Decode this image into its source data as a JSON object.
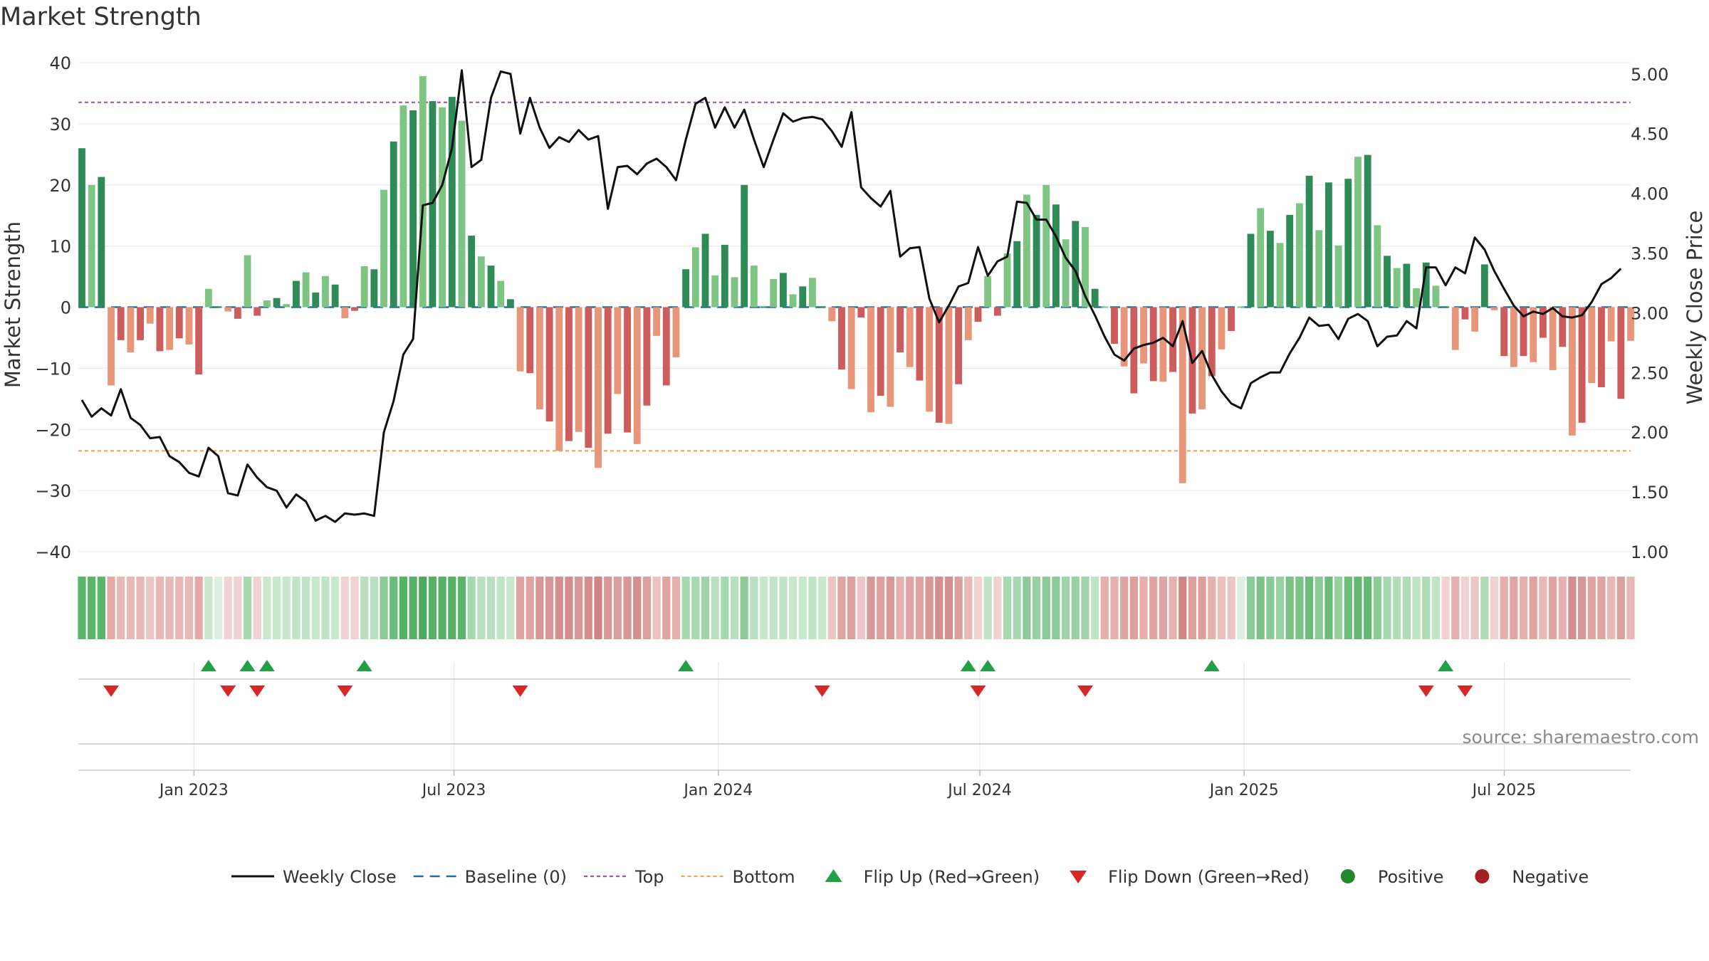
{
  "chart_data": {
    "type": "bar+line",
    "title": "Market Strength",
    "ylabel_left": "Market Strength",
    "ylabel_right": "Weekly Close Price",
    "ylim_left": [
      -40,
      40
    ],
    "ylim_right": [
      1.0,
      5.0
    ],
    "left_ticks": [
      "40",
      "30",
      "20",
      "10",
      "0",
      "−10",
      "−20",
      "−30",
      "−40"
    ],
    "left_tick_values": [
      40,
      30,
      20,
      10,
      0,
      -10,
      -20,
      -30,
      -40
    ],
    "right_ticks": [
      "5.00",
      "4.50",
      "4.00",
      "3.50",
      "3.00",
      "2.50",
      "2.00",
      "1.50",
      "1.00"
    ],
    "right_tick_values": [
      5.0,
      4.5,
      4.0,
      3.5,
      3.0,
      2.5,
      2.0,
      1.5,
      1.0
    ],
    "x_start": "2022-10-15",
    "x_end": "2025-09-27",
    "week_step_days": 7,
    "x_ticks": [
      {
        "label": "Jan 2023",
        "date": "2023-01-01"
      },
      {
        "label": "Jul 2023",
        "date": "2023-07-01"
      },
      {
        "label": "Jan 2024",
        "date": "2024-01-01"
      },
      {
        "label": "Jul 2024",
        "date": "2024-07-01"
      },
      {
        "label": "Jan 2025",
        "date": "2025-01-01"
      },
      {
        "label": "Jul 2025",
        "date": "2025-07-01"
      }
    ],
    "top_level": 33.5,
    "bottom_level": -23.5,
    "strength": [
      26,
      20,
      21.3,
      -12.8,
      -5.4,
      -7.4,
      -5.4,
      -2.7,
      -7.2,
      -7,
      -5.1,
      -6.1,
      -11,
      3,
      0,
      -0.7,
      -1.9,
      8.5,
      -1.4,
      1.1,
      1.5,
      0.5,
      4.3,
      5.7,
      2.4,
      5.1,
      3.7,
      -1.8,
      -0.6,
      6.7,
      6.2,
      19.2,
      27.1,
      33,
      32.2,
      37.8,
      33.7,
      32.7,
      34.4,
      30.5,
      11.7,
      8.3,
      6.8,
      4.3,
      1.3,
      -10.5,
      -10.8,
      -16.7,
      -18.7,
      -23.5,
      -21.9,
      -20.4,
      -23,
      -26.3,
      -20.7,
      -14.2,
      -20.5,
      -22.4,
      -16.1,
      -4.7,
      -12.8,
      -8.2,
      6.2,
      9.8,
      12,
      5.2,
      10.2,
      4.9,
      20,
      6.8,
      0,
      4.6,
      5.6,
      2.1,
      3.4,
      4.8,
      0,
      -2.3,
      -10.2,
      -13.4,
      -1.7,
      -17.2,
      -14.5,
      -16.3,
      -7.4,
      -9.8,
      -12,
      -17.1,
      -18.9,
      -19.1,
      -12.6,
      -5.4,
      -2.4,
      5.1,
      -1.4,
      8.8,
      10.8,
      18.4,
      15.1,
      20,
      16.8,
      11.1,
      14.1,
      13.1,
      3,
      0,
      -6,
      -9.7,
      -14.1,
      -9.2,
      -12.1,
      -12.2,
      -10.6,
      -28.8,
      -17.4,
      -16.7,
      -11.3,
      -6.9,
      -3.9,
      0,
      12,
      16.2,
      12.5,
      10.5,
      15.1,
      17,
      21.5,
      12.6,
      20.4,
      10.1,
      21,
      24.6,
      24.9,
      13.4,
      8.4,
      6.4,
      7.1,
      3.1,
      7.3,
      3.5,
      0,
      -7,
      -2,
      -4,
      7,
      -0.5,
      -8,
      -9.8,
      -8,
      -9,
      -5,
      -10.3,
      -6.5,
      -21,
      -18.9,
      -12.4,
      -13.1,
      -5.6,
      -15,
      -5.5
    ],
    "close": [
      2.27,
      2.13,
      2.2,
      2.14,
      2.36,
      2.12,
      2.06,
      1.95,
      1.96,
      1.8,
      1.75,
      1.66,
      1.63,
      1.87,
      1.8,
      1.49,
      1.47,
      1.73,
      1.62,
      1.54,
      1.51,
      1.37,
      1.48,
      1.42,
      1.26,
      1.3,
      1.25,
      1.32,
      1.31,
      1.32,
      1.3,
      2.0,
      2.26,
      2.65,
      2.78,
      3.9,
      3.92,
      4.07,
      4.38,
      5.03,
      4.22,
      4.28,
      4.8,
      5.02,
      5.0,
      4.5,
      4.8,
      4.55,
      4.38,
      4.47,
      4.43,
      4.53,
      4.45,
      4.48,
      3.87,
      4.22,
      4.23,
      4.16,
      4.25,
      4.29,
      4.22,
      4.11,
      4.45,
      4.75,
      4.8,
      4.55,
      4.72,
      4.55,
      4.7,
      4.45,
      4.22,
      4.45,
      4.67,
      4.6,
      4.63,
      4.64,
      4.62,
      4.52,
      4.39,
      4.68,
      4.05,
      3.96,
      3.89,
      4.02,
      3.47,
      3.54,
      3.55,
      3.12,
      2.92,
      3.06,
      3.22,
      3.25,
      3.55,
      3.31,
      3.43,
      3.47,
      3.93,
      3.92,
      3.78,
      3.78,
      3.64,
      3.46,
      3.35,
      3.14,
      2.98,
      2.8,
      2.65,
      2.6,
      2.7,
      2.73,
      2.75,
      2.79,
      2.72,
      2.93,
      2.58,
      2.68,
      2.48,
      2.34,
      2.24,
      2.2,
      2.41,
      2.46,
      2.5,
      2.5,
      2.66,
      2.79,
      2.96,
      2.89,
      2.9,
      2.78,
      2.95,
      2.99,
      2.93,
      2.72,
      2.8,
      2.81,
      2.93,
      2.87,
      3.38,
      3.38,
      3.23,
      3.38,
      3.33,
      3.63,
      3.53,
      3.35,
      3.2,
      3.06,
      2.97,
      3.01,
      2.99,
      3.04,
      2.97,
      2.96,
      2.98,
      3.09,
      3.24,
      3.29,
      3.37
    ],
    "strip": [
      {
        "i": 0,
        "c": "#5ab46a"
      },
      {
        "i": 1,
        "c": "#5ab46a"
      },
      {
        "i": 2,
        "c": "#5ab46a"
      },
      {
        "i": 3,
        "c": "#e6a8a6"
      },
      {
        "i": 4,
        "c": "#e8b8b6"
      },
      {
        "i": 5,
        "c": "#e8b8b6"
      },
      {
        "i": 6,
        "c": "#e8b8b6"
      },
      {
        "i": 7,
        "c": "#ecc6c4"
      },
      {
        "i": 8,
        "c": "#e8b8b6"
      },
      {
        "i": 9,
        "c": "#e8b8b6"
      },
      {
        "i": 10,
        "c": "#e8b8b6"
      },
      {
        "i": 11,
        "c": "#e8b8b6"
      },
      {
        "i": 12,
        "c": "#e6a8a6"
      },
      {
        "i": 13,
        "c": "#c8e8cc"
      },
      {
        "i": 14,
        "c": "#dcefe0"
      },
      {
        "i": 15,
        "c": "#f0d2d0"
      },
      {
        "i": 16,
        "c": "#f0d2d0"
      },
      {
        "i": 17,
        "c": "#a8d8b0"
      },
      {
        "i": 18,
        "c": "#f0d2d0"
      },
      {
        "i": 19,
        "c": "#c8e8cc"
      },
      {
        "i": 20,
        "c": "#c8e8cc"
      },
      {
        "i": 21,
        "c": "#c8e8cc"
      },
      {
        "i": 22,
        "c": "#c0e4c6"
      },
      {
        "i": 23,
        "c": "#c0e4c6"
      },
      {
        "i": 24,
        "c": "#c8e8cc"
      },
      {
        "i": 25,
        "c": "#c0e4c6"
      },
      {
        "i": 26,
        "c": "#c8e8cc"
      },
      {
        "i": 27,
        "c": "#f0d2d0"
      },
      {
        "i": 28,
        "c": "#f0d2d0"
      },
      {
        "i": 29,
        "c": "#b8e0c0"
      },
      {
        "i": 30,
        "c": "#b8e0c0"
      },
      {
        "i": 31,
        "c": "#8ccb98"
      },
      {
        "i": 32,
        "c": "#6cbd7a"
      },
      {
        "i": 33,
        "c": "#56b066"
      },
      {
        "i": 34,
        "c": "#56b066"
      },
      {
        "i": 35,
        "c": "#4caa5c"
      },
      {
        "i": 36,
        "c": "#56b066"
      },
      {
        "i": 37,
        "c": "#56b066"
      },
      {
        "i": 38,
        "c": "#56b066"
      },
      {
        "i": 39,
        "c": "#5ab46a"
      },
      {
        "i": 40,
        "c": "#a8d8b0"
      },
      {
        "i": 41,
        "c": "#b8e0c0"
      },
      {
        "i": 42,
        "c": "#b8e0c0"
      },
      {
        "i": 43,
        "c": "#c0e4c6"
      },
      {
        "i": 44,
        "c": "#c8e8cc"
      },
      {
        "i": 45,
        "c": "#e0a4a2"
      },
      {
        "i": 46,
        "c": "#e0a4a2"
      },
      {
        "i": 47,
        "c": "#d89896"
      },
      {
        "i": 48,
        "c": "#d89896"
      },
      {
        "i": 49,
        "c": "#d48e8c"
      },
      {
        "i": 50,
        "c": "#d48e8c"
      },
      {
        "i": 51,
        "c": "#d89896"
      },
      {
        "i": 52,
        "c": "#d48e8c"
      },
      {
        "i": 53,
        "c": "#d08684"
      },
      {
        "i": 54,
        "c": "#d89896"
      },
      {
        "i": 55,
        "c": "#dc9e9c"
      },
      {
        "i": 56,
        "c": "#d89896"
      },
      {
        "i": 57,
        "c": "#d48e8c"
      },
      {
        "i": 58,
        "c": "#dca09e"
      },
      {
        "i": 59,
        "c": "#ecc0be"
      },
      {
        "i": 60,
        "c": "#e0a4a2"
      },
      {
        "i": 61,
        "c": "#e6b0ae"
      },
      {
        "i": 62,
        "c": "#a8d8b0"
      },
      {
        "i": 63,
        "c": "#a8d8b0"
      },
      {
        "i": 64,
        "c": "#a0d4a8"
      },
      {
        "i": 65,
        "c": "#b8e0c0"
      },
      {
        "i": 66,
        "c": "#a8d8b0"
      },
      {
        "i": 67,
        "c": "#b8e0c0"
      },
      {
        "i": 68,
        "c": "#8ccb98"
      },
      {
        "i": 69,
        "c": "#b8e0c0"
      },
      {
        "i": 70,
        "c": "#c8e8cc"
      },
      {
        "i": 71,
        "c": "#c0e4c6"
      },
      {
        "i": 72,
        "c": "#c0e4c6"
      },
      {
        "i": 73,
        "c": "#c8e8cc"
      },
      {
        "i": 74,
        "c": "#c8e8cc"
      },
      {
        "i": 75,
        "c": "#c0e4c6"
      },
      {
        "i": 76,
        "c": "#c8e8cc"
      },
      {
        "i": 77,
        "c": "#ecc6c4"
      },
      {
        "i": 78,
        "c": "#e0a4a2"
      },
      {
        "i": 79,
        "c": "#dca09e"
      },
      {
        "i": 80,
        "c": "#ecc6c4"
      },
      {
        "i": 81,
        "c": "#d89896"
      },
      {
        "i": 82,
        "c": "#dca09e"
      },
      {
        "i": 83,
        "c": "#d89896"
      },
      {
        "i": 84,
        "c": "#e6b0ae"
      },
      {
        "i": 85,
        "c": "#e0a4a2"
      },
      {
        "i": 86,
        "c": "#e0a4a2"
      },
      {
        "i": 87,
        "c": "#d89896"
      },
      {
        "i": 88,
        "c": "#d48e8c"
      },
      {
        "i": 89,
        "c": "#d48e8c"
      },
      {
        "i": 90,
        "c": "#dca09e"
      },
      {
        "i": 91,
        "c": "#e8b8b6"
      },
      {
        "i": 92,
        "c": "#f0d2d0"
      },
      {
        "i": 93,
        "c": "#c0e4c6"
      },
      {
        "i": 94,
        "c": "#f0d2d0"
      },
      {
        "i": 95,
        "c": "#a8d8b0"
      },
      {
        "i": 96,
        "c": "#a8d8b0"
      },
      {
        "i": 97,
        "c": "#8ccb98"
      },
      {
        "i": 98,
        "c": "#98d0a2"
      },
      {
        "i": 99,
        "c": "#8ccb98"
      },
      {
        "i": 100,
        "c": "#8ccb98"
      },
      {
        "i": 101,
        "c": "#a0d4a8"
      },
      {
        "i": 102,
        "c": "#98d0a2"
      },
      {
        "i": 103,
        "c": "#a0d4a8"
      },
      {
        "i": 104,
        "c": "#c0e4c6"
      },
      {
        "i": 105,
        "c": "#e6b0ae"
      },
      {
        "i": 106,
        "c": "#e6b0ae"
      },
      {
        "i": 107,
        "c": "#e0a4a2"
      },
      {
        "i": 108,
        "c": "#dca09e"
      },
      {
        "i": 109,
        "c": "#e6b0ae"
      },
      {
        "i": 110,
        "c": "#e0a4a2"
      },
      {
        "i": 111,
        "c": "#e0a4a2"
      },
      {
        "i": 112,
        "c": "#e6b0ae"
      },
      {
        "i": 113,
        "c": "#d08684"
      },
      {
        "i": 114,
        "c": "#dca09e"
      },
      {
        "i": 115,
        "c": "#dca09e"
      },
      {
        "i": 116,
        "c": "#e6b0ae"
      },
      {
        "i": 117,
        "c": "#ecc0be"
      },
      {
        "i": 118,
        "c": "#ecc6c4"
      },
      {
        "i": 119,
        "c": "#dcefe0"
      },
      {
        "i": 120,
        "c": "#8ccb98"
      },
      {
        "i": 121,
        "c": "#7cc388"
      },
      {
        "i": 122,
        "c": "#8ccb98"
      },
      {
        "i": 123,
        "c": "#98d0a2"
      },
      {
        "i": 124,
        "c": "#7cc388"
      },
      {
        "i": 125,
        "c": "#7cc388"
      },
      {
        "i": 126,
        "c": "#6cbd7a"
      },
      {
        "i": 127,
        "c": "#8ccb98"
      },
      {
        "i": 128,
        "c": "#6cbd7a"
      },
      {
        "i": 129,
        "c": "#98d0a2"
      },
      {
        "i": 130,
        "c": "#6cbd7a"
      },
      {
        "i": 131,
        "c": "#64b872"
      },
      {
        "i": 132,
        "c": "#64b872"
      },
      {
        "i": 133,
        "c": "#8ccb98"
      },
      {
        "i": 134,
        "c": "#a8d8b0"
      },
      {
        "i": 135,
        "c": "#b0dcb8"
      },
      {
        "i": 136,
        "c": "#b0dcb8"
      },
      {
        "i": 137,
        "c": "#c0e4c6"
      },
      {
        "i": 138,
        "c": "#b0dcb8"
      },
      {
        "i": 139,
        "c": "#c0e4c6"
      },
      {
        "i": 140,
        "c": "#f0d2d0"
      },
      {
        "i": 141,
        "c": "#e6b0ae"
      },
      {
        "i": 142,
        "c": "#f0d2d0"
      },
      {
        "i": 143,
        "c": "#ecc6c4"
      },
      {
        "i": 144,
        "c": "#b0dcb8"
      },
      {
        "i": 145,
        "c": "#f0d2d0"
      },
      {
        "i": 146,
        "c": "#e6b0ae"
      },
      {
        "i": 147,
        "c": "#e0a4a2"
      },
      {
        "i": 148,
        "c": "#e6b0ae"
      },
      {
        "i": 149,
        "c": "#e0a4a2"
      },
      {
        "i": 150,
        "c": "#e8b8b6"
      },
      {
        "i": 151,
        "c": "#e0a4a2"
      },
      {
        "i": 152,
        "c": "#e6b0ae"
      },
      {
        "i": 153,
        "c": "#d48e8c"
      },
      {
        "i": 154,
        "c": "#d89896"
      },
      {
        "i": 155,
        "c": "#e0a4a2"
      },
      {
        "i": 156,
        "c": "#e0a4a2"
      },
      {
        "i": 157,
        "c": "#e8b8b6"
      },
      {
        "i": 158,
        "c": "#dca09e"
      },
      {
        "i": 159,
        "c": "#e8b8b6"
      }
    ],
    "flip_up_weeks": [
      13,
      17,
      19,
      29,
      62,
      91,
      93,
      116,
      140
    ],
    "flip_down_weeks": [
      3,
      15,
      18,
      27,
      45,
      76,
      92,
      103,
      138,
      142
    ],
    "legend": [
      {
        "label": "Weekly Close",
        "kind": "line"
      },
      {
        "label": "Baseline (0)",
        "kind": "dashline"
      },
      {
        "label": "Top",
        "kind": "dotline-purple"
      },
      {
        "label": "Bottom",
        "kind": "dotline-orange"
      },
      {
        "label": "Flip Up (Red→Green)",
        "kind": "tri-up"
      },
      {
        "label": "Flip Down (Green→Red)",
        "kind": "tri-down"
      },
      {
        "label": "Positive",
        "kind": "dot-green"
      },
      {
        "label": "Negative",
        "kind": "dot-red"
      }
    ],
    "source": "source: sharemaestro.com"
  },
  "colors": {
    "pos_dark": "#2e8b57",
    "pos_light": "#7ec483",
    "neg_dark": "#cd5c5c",
    "neg_light": "#e8967a",
    "line": "#111111",
    "baseline": "#1f6f9f",
    "top": "#9b59b6",
    "bottom": "#f0a35a",
    "flip_up": "#22a045",
    "flip_down": "#d62828",
    "dot_green": "#1f8a2a",
    "dot_red": "#a31f22"
  }
}
